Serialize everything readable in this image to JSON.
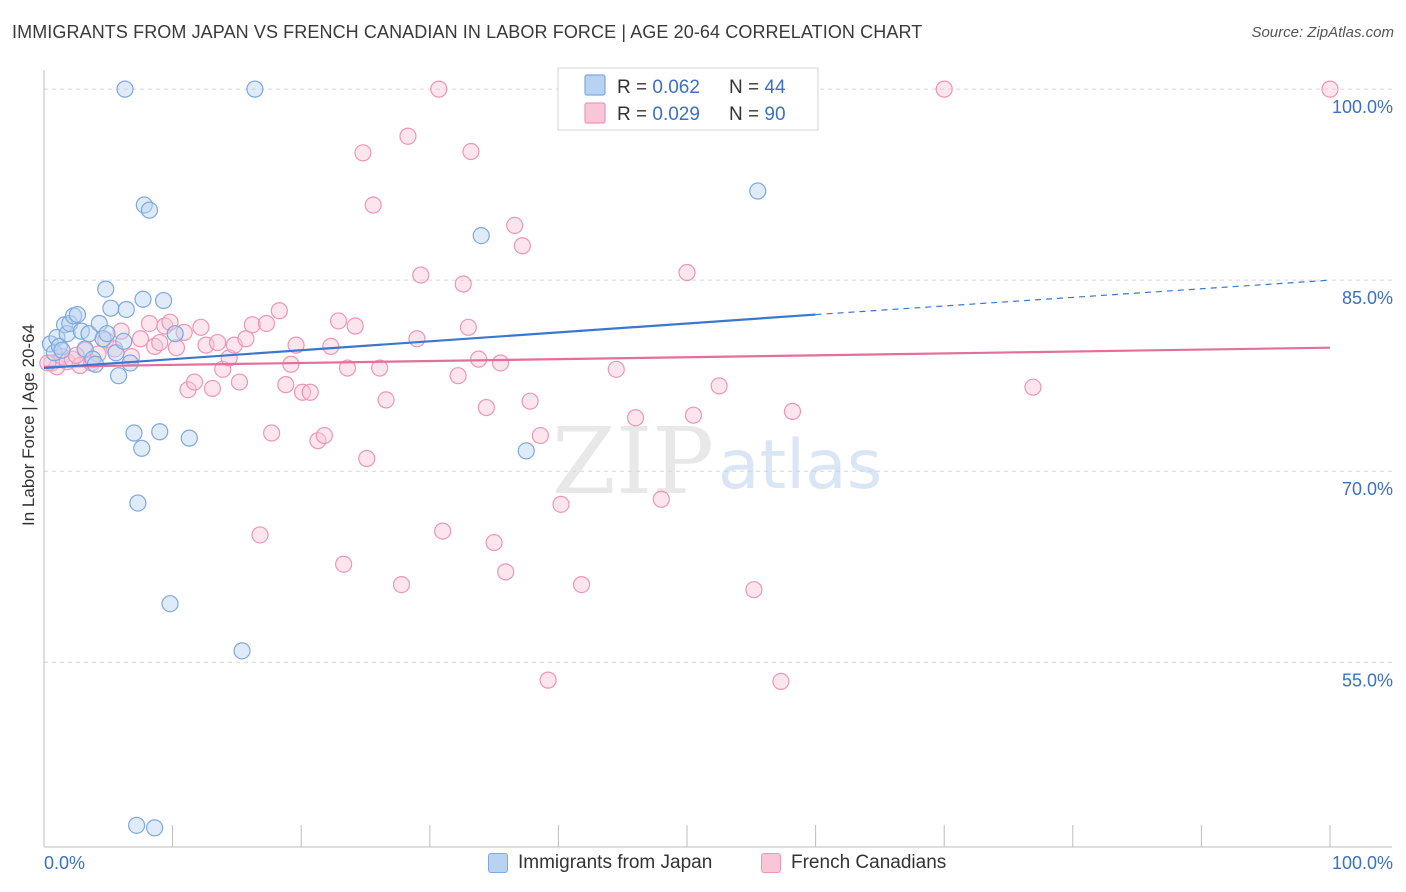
{
  "title": "IMMIGRANTS FROM JAPAN VS FRENCH CANADIAN IN LABOR FORCE | AGE 20-64 CORRELATION CHART",
  "source": "Source: ZipAtlas.com",
  "watermark": {
    "zip": "ZIP",
    "atlas": "atlas"
  },
  "legend_top": [
    {
      "r_label": "R = ",
      "r_value": "0.062",
      "n_label": "N = ",
      "n_value": "44"
    },
    {
      "r_label": "R = ",
      "r_value": "0.029",
      "n_label": "N = ",
      "n_value": "90"
    }
  ],
  "legend_bottom": [
    "Immigrants from Japan",
    "French Canadians"
  ],
  "colors": {
    "blue_fill": "#b8d2f2",
    "blue_stroke": "#7ea8e0",
    "blue_line": "#3a78cf",
    "pink_fill": "#f9c6d6",
    "pink_stroke": "#ee96b3",
    "pink_line": "#e46f9a",
    "value_text": "#3b70c4",
    "grid": "#d6d6d6"
  },
  "chart_data": {
    "type": "scatter",
    "ylabel": "In Labor Force | Age 20-64",
    "x_tick_labels": [
      "0.0%",
      "100.0%"
    ],
    "y_tick_labels": [
      "100.0%",
      "85.0%",
      "70.0%",
      "55.0%"
    ],
    "y_ticks": [
      100,
      85,
      70,
      55
    ],
    "xlim": [
      0,
      100
    ],
    "ylim": [
      40.5,
      101.5
    ],
    "grid": true,
    "series": [
      {
        "name": "Immigrants from Japan",
        "color": "#b8d2f2",
        "trend": {
          "x0": 0,
          "y0": 78.1,
          "x1": 60,
          "y1": 82.3,
          "dashed_to_x": 100,
          "dashed_to_y": 85.0
        },
        "points": [
          [
            0.5,
            80.0
          ],
          [
            0.8,
            79.3
          ],
          [
            1.0,
            80.5
          ],
          [
            1.2,
            79.8
          ],
          [
            1.4,
            79.5
          ],
          [
            1.6,
            81.5
          ],
          [
            1.8,
            80.8
          ],
          [
            2.0,
            81.6
          ],
          [
            2.3,
            82.2
          ],
          [
            2.6,
            82.3
          ],
          [
            2.9,
            81.0
          ],
          [
            3.2,
            79.6
          ],
          [
            3.5,
            80.8
          ],
          [
            3.8,
            78.8
          ],
          [
            4.0,
            78.4
          ],
          [
            4.3,
            81.6
          ],
          [
            4.6,
            80.4
          ],
          [
            4.9,
            80.8
          ],
          [
            5.2,
            82.8
          ],
          [
            4.8,
            84.3
          ],
          [
            5.6,
            79.3
          ],
          [
            5.8,
            77.5
          ],
          [
            6.2,
            80.2
          ],
          [
            6.4,
            82.7
          ],
          [
            6.7,
            78.5
          ],
          [
            7.0,
            73.0
          ],
          [
            7.3,
            67.5
          ],
          [
            7.6,
            71.8
          ],
          [
            6.3,
            100.0
          ],
          [
            16.4,
            100.0
          ],
          [
            7.8,
            90.9
          ],
          [
            8.2,
            90.5
          ],
          [
            7.7,
            83.5
          ],
          [
            9.3,
            83.4
          ],
          [
            10.2,
            80.8
          ],
          [
            9.0,
            73.1
          ],
          [
            11.3,
            72.6
          ],
          [
            9.8,
            59.6
          ],
          [
            15.4,
            55.9
          ],
          [
            7.2,
            42.2
          ],
          [
            8.6,
            42.0
          ],
          [
            34.0,
            88.5
          ],
          [
            55.5,
            92.0
          ],
          [
            37.5,
            71.6
          ]
        ]
      },
      {
        "name": "French Canadians",
        "color": "#f9c6d6",
        "trend": {
          "x0": 0,
          "y0": 78.2,
          "x1": 100,
          "y1": 79.7
        },
        "points": [
          [
            0.6,
            78.5
          ],
          [
            1.0,
            78.2
          ],
          [
            1.4,
            79.0
          ],
          [
            1.8,
            78.6
          ],
          [
            2.2,
            78.8
          ],
          [
            2.8,
            78.3
          ],
          [
            3.2,
            79.5
          ],
          [
            3.7,
            78.5
          ],
          [
            4.2,
            79.2
          ],
          [
            4.8,
            80.3
          ],
          [
            5.5,
            79.6
          ],
          [
            6.0,
            81.0
          ],
          [
            6.8,
            79.0
          ],
          [
            7.5,
            80.4
          ],
          [
            8.2,
            81.6
          ],
          [
            8.6,
            79.8
          ],
          [
            9.0,
            80.1
          ],
          [
            9.4,
            81.4
          ],
          [
            9.8,
            81.7
          ],
          [
            10.3,
            79.7
          ],
          [
            10.9,
            80.9
          ],
          [
            11.2,
            76.4
          ],
          [
            11.7,
            77.0
          ],
          [
            12.2,
            81.3
          ],
          [
            12.6,
            79.9
          ],
          [
            13.1,
            76.5
          ],
          [
            13.5,
            80.1
          ],
          [
            13.9,
            78.0
          ],
          [
            14.4,
            78.9
          ],
          [
            14.8,
            79.9
          ],
          [
            15.2,
            77.0
          ],
          [
            15.7,
            80.4
          ],
          [
            16.2,
            81.5
          ],
          [
            16.8,
            65.0
          ],
          [
            17.3,
            81.6
          ],
          [
            17.7,
            73.0
          ],
          [
            18.3,
            82.6
          ],
          [
            18.8,
            76.8
          ],
          [
            19.2,
            78.4
          ],
          [
            19.6,
            79.9
          ],
          [
            20.1,
            76.2
          ],
          [
            20.7,
            76.2
          ],
          [
            21.3,
            72.4
          ],
          [
            21.8,
            72.8
          ],
          [
            22.3,
            79.8
          ],
          [
            22.9,
            81.8
          ],
          [
            23.3,
            62.7
          ],
          [
            23.6,
            78.1
          ],
          [
            24.2,
            81.4
          ],
          [
            24.8,
            95.0
          ],
          [
            25.1,
            71.0
          ],
          [
            25.6,
            90.9
          ],
          [
            26.1,
            78.1
          ],
          [
            26.6,
            75.6
          ],
          [
            27.8,
            61.1
          ],
          [
            28.3,
            96.3
          ],
          [
            29.0,
            80.4
          ],
          [
            29.3,
            85.4
          ],
          [
            30.7,
            100.0
          ],
          [
            31.0,
            65.3
          ],
          [
            32.2,
            77.5
          ],
          [
            32.6,
            84.7
          ],
          [
            33.0,
            81.3
          ],
          [
            33.2,
            95.1
          ],
          [
            33.8,
            78.8
          ],
          [
            34.4,
            75.0
          ],
          [
            35.0,
            64.4
          ],
          [
            35.5,
            78.5
          ],
          [
            35.9,
            62.1
          ],
          [
            36.6,
            89.3
          ],
          [
            37.2,
            87.7
          ],
          [
            37.8,
            75.5
          ],
          [
            38.6,
            72.8
          ],
          [
            39.2,
            53.6
          ],
          [
            40.2,
            67.4
          ],
          [
            41.8,
            61.1
          ],
          [
            44.5,
            78.0
          ],
          [
            46.0,
            74.2
          ],
          [
            48.0,
            67.8
          ],
          [
            50.0,
            85.6
          ],
          [
            50.5,
            74.4
          ],
          [
            52.5,
            76.7
          ],
          [
            55.2,
            60.7
          ],
          [
            57.3,
            53.5
          ],
          [
            58.2,
            74.7
          ],
          [
            70.0,
            100.0
          ],
          [
            76.9,
            76.6
          ],
          [
            100.0,
            100.0
          ],
          [
            0.3,
            78.5
          ],
          [
            2.5,
            79.1
          ]
        ]
      }
    ]
  }
}
